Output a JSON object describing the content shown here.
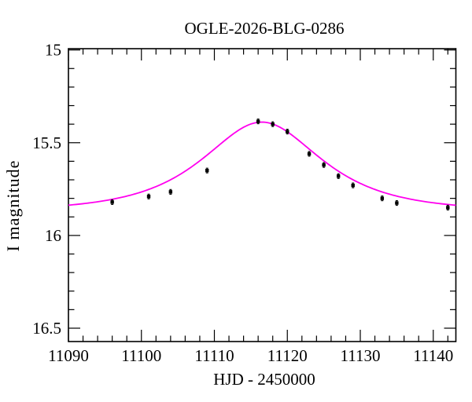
{
  "chart_data": {
    "type": "scatter",
    "title": "OGLE-2026-BLG-0286",
    "xlabel": "HJD - 2450000",
    "ylabel": "I magnitude",
    "x_range": [
      11090,
      11143.1
    ],
    "y_scale": {
      "top_mag": 14.993,
      "bottom_mag": 16.572,
      "inverted_magnitude_axis": true
    },
    "grid": false,
    "legend": "none",
    "x_major_ticks": [
      11090,
      11100,
      11110,
      11120,
      11130,
      11140
    ],
    "x_major_tick_labels": [
      "11090",
      "11100",
      "11110",
      "11120",
      "11130",
      "11140"
    ],
    "x_minor_tick_step": 2,
    "y_major_ticks": [
      15,
      15.5,
      16,
      16.5
    ],
    "y_major_tick_labels": [
      "15",
      "15.5",
      "16",
      "16.5"
    ],
    "y_minor_tick_step": 0.1,
    "model_curve": {
      "model": "paczynski_microlensing",
      "t0": 11116.5,
      "tE": 11.2,
      "u0": 0.78,
      "baseline_mag": 15.87,
      "peak_mag": 15.39,
      "color": "#ff00ee"
    },
    "point_color": "#000000",
    "frame_color": "#000000",
    "points": [
      {
        "t": 11096,
        "mag": 15.82,
        "err": 0.013
      },
      {
        "t": 11101,
        "mag": 15.79,
        "err": 0.013
      },
      {
        "t": 11104,
        "mag": 15.765,
        "err": 0.013
      },
      {
        "t": 11109,
        "mag": 15.65,
        "err": 0.013
      },
      {
        "t": 11116,
        "mag": 15.385,
        "err": 0.013
      },
      {
        "t": 11118,
        "mag": 15.4,
        "err": 0.013
      },
      {
        "t": 11120,
        "mag": 15.44,
        "err": 0.013
      },
      {
        "t": 11123,
        "mag": 15.56,
        "err": 0.013
      },
      {
        "t": 11125,
        "mag": 15.62,
        "err": 0.013
      },
      {
        "t": 11127,
        "mag": 15.68,
        "err": 0.013
      },
      {
        "t": 11129,
        "mag": 15.73,
        "err": 0.013
      },
      {
        "t": 11133,
        "mag": 15.8,
        "err": 0.013
      },
      {
        "t": 11135,
        "mag": 15.825,
        "err": 0.013
      },
      {
        "t": 11142,
        "mag": 15.85,
        "err": 0.013
      }
    ]
  }
}
